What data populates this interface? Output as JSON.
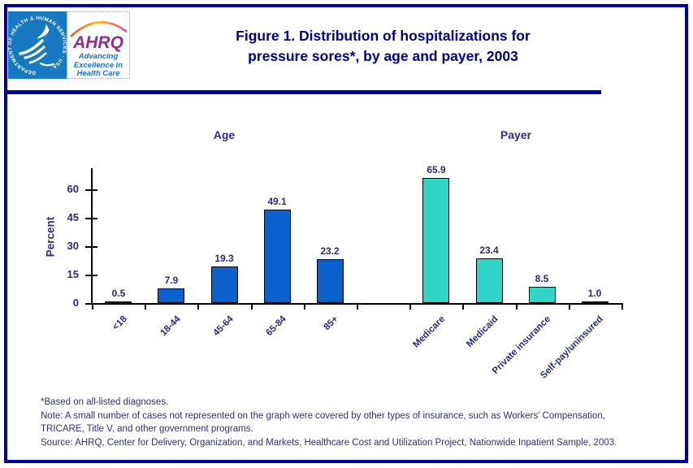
{
  "header": {
    "title_line1": "Figure 1. Distribution of hospitalizations for",
    "title_line2": "pressure sores*, by age and payer, 2003",
    "logo": {
      "hhs_seal_text": "DEPARTMENT OF HEALTH & HUMAN SERVICES · USA ·",
      "ahrq_acronym": "AHRQ",
      "tagline_line1": "Advancing",
      "tagline_line2": "Excellence in",
      "tagline_line3": "Health Care"
    }
  },
  "colors": {
    "page_border": "#0000a0",
    "title_navy": "#00008b",
    "label_navy": "#29297b",
    "hhs_blue": "#1779bf",
    "ahrq_purple": "#8e2f8e",
    "tagline_blue": "#1b75bc",
    "age_bar_blue": "#0d61ce",
    "payer_bar_teal": "#30d5c8"
  },
  "chart_data": {
    "type": "bar",
    "title": "",
    "xlabel": "",
    "ylabel": "Percent",
    "ylim": [
      0,
      70
    ],
    "yticks": [
      0,
      15,
      30,
      45,
      60
    ],
    "grid": false,
    "legend": "none",
    "groups": [
      {
        "name": "Age",
        "color": "#0d61ce",
        "categories": [
          "<18",
          "18-44",
          "45-64",
          "65-84",
          "85+"
        ],
        "values": [
          0.5,
          7.9,
          19.3,
          49.1,
          23.2
        ],
        "labels": [
          "0.5",
          "7.9",
          "19.3",
          "49.1",
          "23.2"
        ]
      },
      {
        "name": "Payer",
        "color": "#30d5c8",
        "categories": [
          "Medicare",
          "Medicaid",
          "Private insurance",
          "Self-pay/uninsured"
        ],
        "values": [
          65.9,
          23.4,
          8.5,
          1.0
        ],
        "labels": [
          "65.9",
          "23.4",
          "8.5",
          "1.0"
        ]
      }
    ]
  },
  "footnotes": {
    "line1": "*Based on all-listed diagnoses.",
    "line2": "Note: A small number of cases not represented on the graph were covered by other types of insurance, such as Workers' Compensation, TRICARE, Title V, and other government programs.",
    "line3": "Source: AHRQ, Center for Delivery, Organization, and Markets, Healthcare Cost and Utilization Project, Nationwide Inpatient Sample, 2003."
  }
}
